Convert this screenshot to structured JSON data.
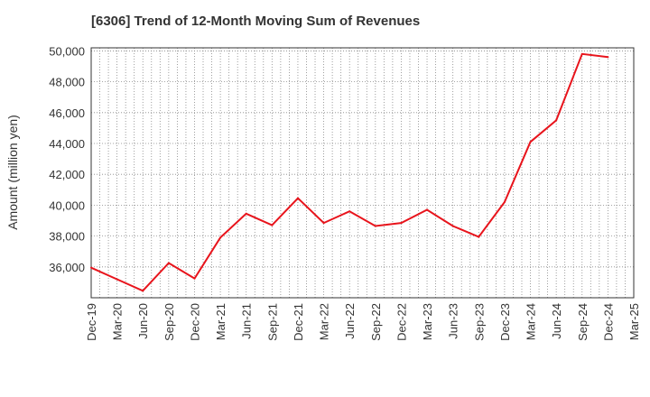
{
  "chart_data": {
    "type": "line",
    "title": "[6306]  Trend of 12-Month Moving Sum of Revenues",
    "xlabel": "",
    "ylabel": "Amount (million yen)",
    "x_ticks": [
      "Dec-19",
      "Mar-20",
      "Jun-20",
      "Sep-20",
      "Dec-20",
      "Mar-21",
      "Jun-21",
      "Sep-21",
      "Dec-21",
      "Mar-22",
      "Jun-22",
      "Sep-22",
      "Dec-22",
      "Mar-23",
      "Jun-23",
      "Sep-23",
      "Dec-23",
      "Mar-24",
      "Jun-24",
      "Sep-24",
      "Dec-24",
      "Mar-25"
    ],
    "y_ticks": [
      "36,000",
      "38,000",
      "40,000",
      "42,000",
      "44,000",
      "46,000",
      "48,000",
      "50,000"
    ],
    "y_tick_values": [
      36000,
      38000,
      40000,
      42000,
      44000,
      46000,
      48000,
      50000
    ],
    "ylim": [
      34000,
      50200
    ],
    "grid": true,
    "series": [
      {
        "color": "#e8141c",
        "x": [
          "Dec-19",
          "Mar-20",
          "Jun-20",
          "Sep-20",
          "Dec-20",
          "Mar-21",
          "Jun-21",
          "Sep-21",
          "Dec-21",
          "Mar-22",
          "Jun-22",
          "Sep-22",
          "Dec-22",
          "Mar-23",
          "Jun-23",
          "Sep-23",
          "Dec-23",
          "Mar-24",
          "Jun-24",
          "Sep-24",
          "Dec-24"
        ],
        "values": [
          35950,
          35200,
          34450,
          36250,
          35250,
          37900,
          39450,
          38700,
          40450,
          38850,
          39600,
          38650,
          38850,
          39700,
          38650,
          37950,
          40200,
          44100,
          45500,
          49800,
          49600
        ]
      }
    ]
  }
}
